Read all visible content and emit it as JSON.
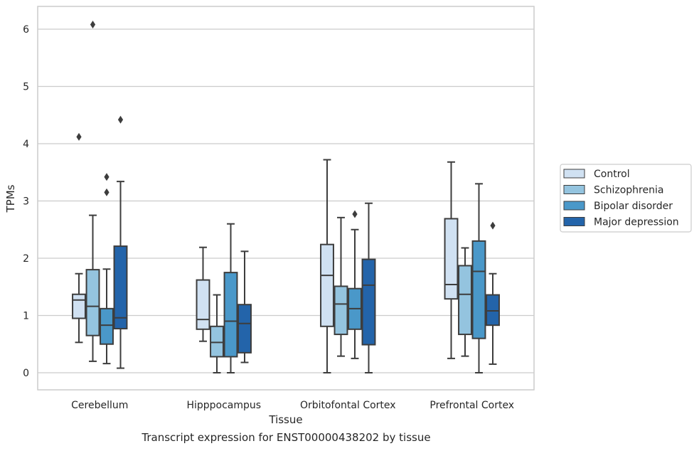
{
  "caption": "Transcript expression for ENST00000438202 by tissue",
  "chart_data": {
    "type": "box",
    "title": "",
    "xlabel": "Tissue",
    "ylabel": "TPMs",
    "ylim": [
      -0.3,
      6.4
    ],
    "yticks": [
      0,
      1,
      2,
      3,
      4,
      5,
      6
    ],
    "grid": "horizontal",
    "legend_position": "right",
    "categories": [
      "Cerebellum",
      "Hipppocampus",
      "Orbitofontal Cortex",
      "Prefrontal Cortex"
    ],
    "series": [
      {
        "name": "Control",
        "color": "#d0e1f2",
        "boxes": [
          {
            "whislo": 0.53,
            "q1": 0.95,
            "med": 1.27,
            "q3": 1.37,
            "whishi": 1.73,
            "fliers": [
              4.12
            ]
          },
          {
            "whislo": 0.55,
            "q1": 0.76,
            "med": 0.93,
            "q3": 1.62,
            "whishi": 2.19,
            "fliers": []
          },
          {
            "whislo": 0.0,
            "q1": 0.81,
            "med": 1.7,
            "q3": 2.24,
            "whishi": 3.72,
            "fliers": []
          },
          {
            "whislo": 0.25,
            "q1": 1.29,
            "med": 1.54,
            "q3": 2.69,
            "whishi": 3.68,
            "fliers": []
          }
        ]
      },
      {
        "name": "Schizophrenia",
        "color": "#94c4df",
        "boxes": [
          {
            "whislo": 0.2,
            "q1": 0.65,
            "med": 1.16,
            "q3": 1.8,
            "whishi": 2.75,
            "fliers": [
              6.08
            ]
          },
          {
            "whislo": 0.0,
            "q1": 0.28,
            "med": 0.53,
            "q3": 0.81,
            "whishi": 1.36,
            "fliers": []
          },
          {
            "whislo": 0.29,
            "q1": 0.67,
            "med": 1.2,
            "q3": 1.51,
            "whishi": 2.71,
            "fliers": []
          },
          {
            "whislo": 0.29,
            "q1": 0.67,
            "med": 1.37,
            "q3": 1.87,
            "whishi": 2.18,
            "fliers": []
          }
        ]
      },
      {
        "name": "Bipolar disorder",
        "color": "#4a98c9",
        "boxes": [
          {
            "whislo": 0.16,
            "q1": 0.5,
            "med": 0.83,
            "q3": 1.12,
            "whishi": 1.81,
            "fliers": [
              3.15,
              3.42
            ]
          },
          {
            "whislo": 0.0,
            "q1": 0.28,
            "med": 0.9,
            "q3": 1.75,
            "whishi": 2.6,
            "fliers": []
          },
          {
            "whislo": 0.25,
            "q1": 0.76,
            "med": 1.12,
            "q3": 1.47,
            "whishi": 2.5,
            "fliers": [
              2.77
            ]
          },
          {
            "whislo": 0.0,
            "q1": 0.6,
            "med": 1.77,
            "q3": 2.3,
            "whishi": 3.3,
            "fliers": []
          }
        ]
      },
      {
        "name": "Major depression",
        "color": "#2364aa",
        "boxes": [
          {
            "whislo": 0.08,
            "q1": 0.77,
            "med": 0.96,
            "q3": 2.21,
            "whishi": 3.34,
            "fliers": [
              4.42
            ]
          },
          {
            "whislo": 0.18,
            "q1": 0.35,
            "med": 0.86,
            "q3": 1.19,
            "whishi": 2.12,
            "fliers": []
          },
          {
            "whislo": 0.0,
            "q1": 0.49,
            "med": 1.53,
            "q3": 1.98,
            "whishi": 2.96,
            "fliers": []
          },
          {
            "whislo": 0.15,
            "q1": 0.83,
            "med": 1.08,
            "q3": 1.36,
            "whishi": 1.73,
            "fliers": [
              2.57
            ]
          }
        ]
      }
    ]
  }
}
